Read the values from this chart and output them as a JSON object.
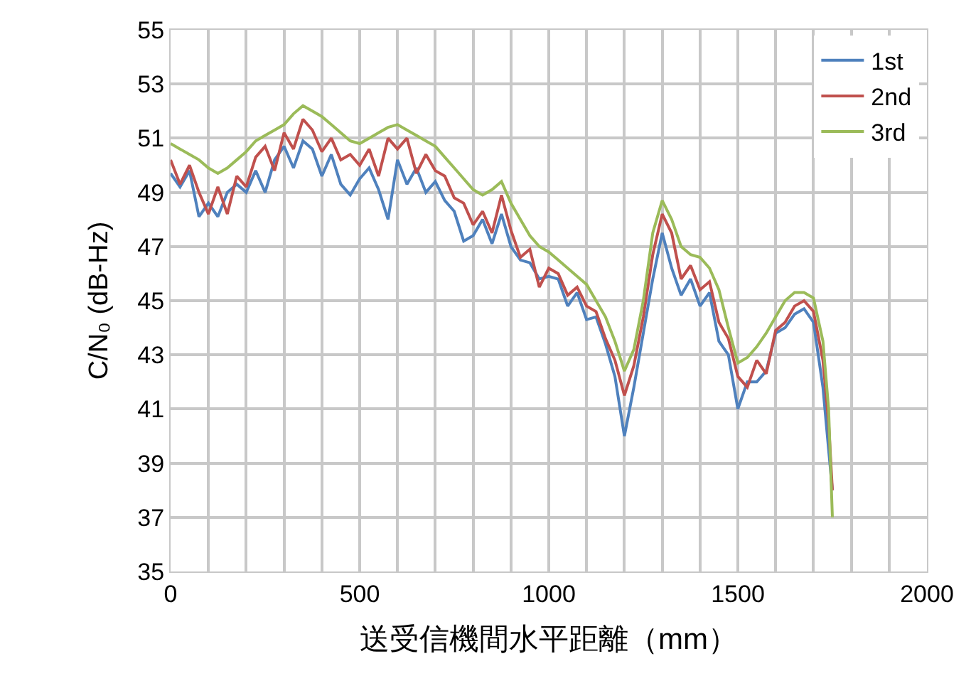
{
  "chart_data": {
    "type": "line",
    "xlabel": "送受信機間水平距離（mm）",
    "ylabel": "C/N₀ (dB-Hz)",
    "x": [
      0,
      25,
      50,
      75,
      100,
      125,
      150,
      175,
      200,
      225,
      250,
      275,
      300,
      325,
      350,
      375,
      400,
      425,
      450,
      475,
      500,
      525,
      550,
      575,
      600,
      625,
      650,
      675,
      700,
      725,
      750,
      775,
      800,
      825,
      850,
      875,
      900,
      925,
      950,
      975,
      1000,
      1025,
      1050,
      1075,
      1100,
      1125,
      1150,
      1175,
      1200,
      1225,
      1250,
      1275,
      1300,
      1325,
      1350,
      1375,
      1400,
      1425,
      1450,
      1475,
      1500,
      1525,
      1550,
      1575,
      1600,
      1625,
      1650,
      1675,
      1700,
      1725,
      1740,
      1750
    ],
    "series": [
      {
        "name": "1st",
        "color": "#4f81bd",
        "values": [
          49.7,
          49.2,
          49.8,
          48.1,
          48.6,
          48.1,
          49.0,
          49.3,
          49.0,
          49.8,
          49.0,
          50.2,
          50.7,
          49.9,
          50.9,
          50.6,
          49.6,
          50.4,
          49.3,
          48.9,
          49.5,
          49.9,
          49.1,
          48.0,
          50.2,
          49.3,
          49.9,
          49.0,
          49.4,
          48.7,
          48.3,
          47.2,
          47.4,
          48.0,
          47.1,
          48.2,
          47.0,
          46.5,
          46.4,
          45.8,
          45.9,
          45.8,
          44.8,
          45.3,
          44.3,
          44.4,
          43.4,
          42.2,
          40.0,
          41.8,
          43.8,
          45.8,
          47.5,
          46.2,
          45.2,
          45.8,
          44.8,
          45.3,
          43.5,
          43.0,
          41.0,
          42.0,
          42.0,
          42.4,
          43.8,
          44.0,
          44.5,
          44.7,
          44.2,
          41.8,
          39.5,
          38.0
        ]
      },
      {
        "name": "2nd",
        "color": "#c0504d",
        "values": [
          50.2,
          49.3,
          50.0,
          49.0,
          48.2,
          49.2,
          48.2,
          49.6,
          49.2,
          50.3,
          50.7,
          49.8,
          51.2,
          50.6,
          51.7,
          51.3,
          50.5,
          51.0,
          50.2,
          50.4,
          50.0,
          50.6,
          49.6,
          51.0,
          50.6,
          51.0,
          49.7,
          50.4,
          49.8,
          49.6,
          48.8,
          48.6,
          47.8,
          48.3,
          47.5,
          48.9,
          47.6,
          46.6,
          46.9,
          45.5,
          46.2,
          46.0,
          45.2,
          45.5,
          44.8,
          44.6,
          43.6,
          42.8,
          41.5,
          42.6,
          44.4,
          46.7,
          48.2,
          47.5,
          45.8,
          46.3,
          45.4,
          45.7,
          44.2,
          43.6,
          42.2,
          41.8,
          42.8,
          42.3,
          43.9,
          44.2,
          44.8,
          45.0,
          44.6,
          42.8,
          40.5,
          38.0
        ]
      },
      {
        "name": "3rd",
        "color": "#9bbb59",
        "values": [
          50.8,
          50.6,
          50.4,
          50.2,
          49.9,
          49.7,
          49.9,
          50.2,
          50.5,
          50.9,
          51.1,
          51.3,
          51.5,
          51.9,
          52.2,
          52.0,
          51.8,
          51.5,
          51.2,
          50.9,
          50.8,
          51.0,
          51.2,
          51.4,
          51.5,
          51.3,
          51.1,
          50.9,
          50.7,
          50.3,
          49.9,
          49.5,
          49.1,
          48.9,
          49.1,
          49.4,
          48.6,
          48.0,
          47.4,
          47.0,
          46.8,
          46.5,
          46.2,
          45.9,
          45.6,
          45.0,
          44.4,
          43.5,
          42.4,
          43.2,
          45.0,
          47.5,
          48.7,
          48.0,
          47.0,
          46.7,
          46.6,
          46.2,
          45.4,
          44.0,
          42.7,
          42.9,
          43.3,
          43.8,
          44.4,
          45.0,
          45.3,
          45.3,
          45.1,
          43.5,
          41.0,
          37.0
        ]
      }
    ],
    "xlim": [
      0,
      2000
    ],
    "xticks": [
      0,
      {
        "value": 100,
        "label": null
      },
      {
        "value": 200,
        "label": null
      },
      {
        "value": 300,
        "label": null
      },
      {
        "value": 400,
        "label": null
      },
      500,
      {
        "value": 600,
        "label": null
      },
      {
        "value": 700,
        "label": null
      },
      {
        "value": 800,
        "label": null
      },
      {
        "value": 900,
        "label": null
      },
      1000,
      {
        "value": 1100,
        "label": null
      },
      {
        "value": 1200,
        "label": null
      },
      {
        "value": 1300,
        "label": null
      },
      {
        "value": 1400,
        "label": null
      },
      1500,
      {
        "value": 1600,
        "label": null
      },
      {
        "value": 1700,
        "label": null
      },
      {
        "value": 1800,
        "label": null
      },
      {
        "value": 1900,
        "label": null
      },
      2000
    ],
    "ylim": [
      35,
      55
    ],
    "yticks": [
      35,
      37,
      39,
      41,
      43,
      45,
      47,
      49,
      51,
      53,
      55
    ],
    "grid": true,
    "legend": "top right",
    "marker": "none",
    "line_style": "solid"
  }
}
